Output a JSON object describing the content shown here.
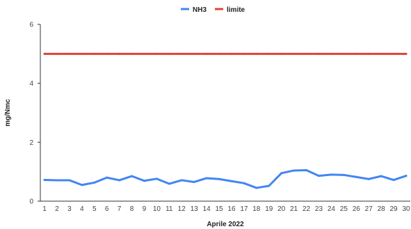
{
  "chart_data": {
    "type": "line",
    "title": "",
    "xlabel": "Aprile 2022",
    "ylabel": "mg/Nmc",
    "ylim": [
      0,
      6
    ],
    "yticks": [
      0,
      2,
      4,
      6
    ],
    "grid": false,
    "legend_position": "top-center",
    "x": [
      "1",
      "2",
      "3",
      "4",
      "5",
      "6",
      "7",
      "8",
      "9",
      "10",
      "11",
      "12",
      "13",
      "14",
      "15",
      "16",
      "17",
      "18",
      "19",
      "20",
      "21",
      "22",
      "23",
      "24",
      "25",
      "26",
      "27",
      "28",
      "29",
      "30"
    ],
    "series": [
      {
        "name": "NH3",
        "color": "#4285f4",
        "values": [
          0.72,
          0.71,
          0.71,
          0.55,
          0.63,
          0.8,
          0.71,
          0.85,
          0.69,
          0.76,
          0.59,
          0.71,
          0.65,
          0.78,
          0.75,
          0.68,
          0.61,
          0.45,
          0.52,
          0.95,
          1.04,
          1.05,
          0.86,
          0.9,
          0.89,
          0.82,
          0.75,
          0.85,
          0.72,
          0.86
        ]
      },
      {
        "name": "limite",
        "color": "#db4437",
        "values": [
          5,
          5,
          5,
          5,
          5,
          5,
          5,
          5,
          5,
          5,
          5,
          5,
          5,
          5,
          5,
          5,
          5,
          5,
          5,
          5,
          5,
          5,
          5,
          5,
          5,
          5,
          5,
          5,
          5,
          5
        ]
      }
    ]
  }
}
